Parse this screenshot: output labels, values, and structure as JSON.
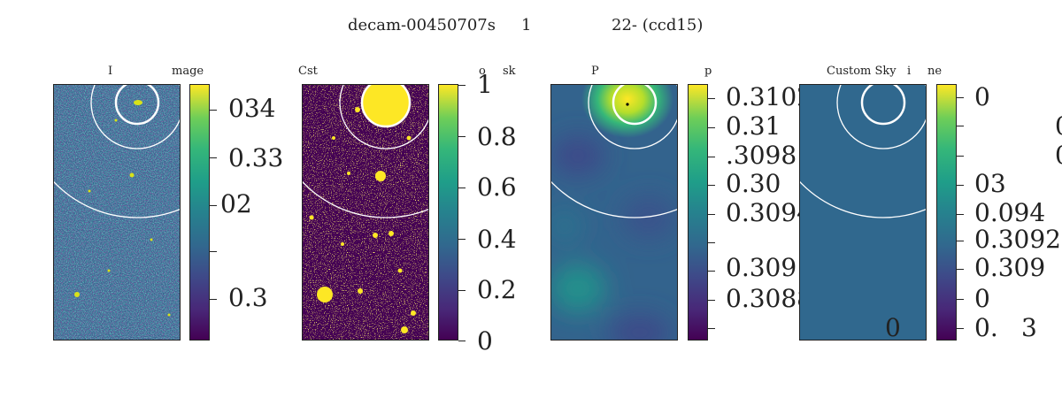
{
  "suptitle": [
    "decam-00450707s",
    "1",
    "22- (ccd15)"
  ],
  "colors": {
    "viridis_dark": "#440154",
    "viridis_blue": "#31688e",
    "viridis_yellow": "#fde725",
    "flat_sky": "#30688e"
  },
  "chart_data": [
    {
      "type": "heatmap",
      "title_parts": [
        "I",
        "mage"
      ],
      "colorbar_ticklabels": [
        "034",
        "0.33",
        "02",
        "",
        "0.3"
      ],
      "colorbar": "viridis"
    },
    {
      "type": "heatmap",
      "title_parts": [
        "Cst",
        "o",
        "sk"
      ],
      "colorbar_ticklabels": [
        "1",
        "0.8",
        "0.6",
        "0.4",
        "0.2",
        "0"
      ],
      "colorbar_ticks": [
        1,
        0.8,
        0.6,
        0.4,
        0.2,
        0
      ],
      "colorbar": "viridis"
    },
    {
      "type": "heatmap",
      "title_parts": [
        "P",
        "p"
      ],
      "colorbar_ticklabels": [
        "0.3102",
        "0.31",
        ".3098",
        "0.30",
        "0.3094",
        "",
        "0.309",
        "0.3088",
        ""
      ],
      "colorbar": "viridis"
    },
    {
      "type": "heatmap",
      "title_parts": [
        "Custom Sky",
        "i",
        "ne"
      ],
      "colorbar_ticklabels": [
        "0",
        "",
        "",
        "03",
        "0.094",
        "0.3092",
        "0.309",
        "0",
        "0.",
        "3"
      ],
      "panel_labels": [
        "0"
      ],
      "edge_labels": [
        "0",
        "0"
      ],
      "colorbar": "viridis"
    }
  ]
}
